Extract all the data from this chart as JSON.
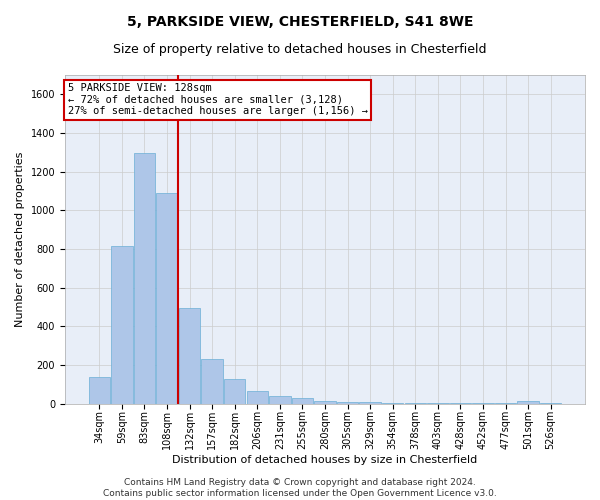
{
  "title1": "5, PARKSIDE VIEW, CHESTERFIELD, S41 8WE",
  "title2": "Size of property relative to detached houses in Chesterfield",
  "xlabel": "Distribution of detached houses by size in Chesterfield",
  "ylabel": "Number of detached properties",
  "footer": "Contains HM Land Registry data © Crown copyright and database right 2024.\nContains public sector information licensed under the Open Government Licence v3.0.",
  "categories": [
    "34sqm",
    "59sqm",
    "83sqm",
    "108sqm",
    "132sqm",
    "157sqm",
    "182sqm",
    "206sqm",
    "231sqm",
    "255sqm",
    "280sqm",
    "305sqm",
    "329sqm",
    "354sqm",
    "378sqm",
    "403sqm",
    "428sqm",
    "452sqm",
    "477sqm",
    "501sqm",
    "526sqm"
  ],
  "values": [
    140,
    815,
    1295,
    1090,
    495,
    230,
    130,
    65,
    38,
    27,
    15,
    10,
    8,
    5,
    5,
    3,
    3,
    2,
    2,
    12,
    5
  ],
  "bar_color": "#aec6e8",
  "bar_edge_color": "#6aaed6",
  "ref_line_x": 3.5,
  "ref_line_label": "5 PARKSIDE VIEW: 128sqm",
  "annotation_line1": "← 72% of detached houses are smaller (3,128)",
  "annotation_line2": "27% of semi-detached houses are larger (1,156) →",
  "annotation_box_color": "#ffffff",
  "annotation_box_edge": "#cc0000",
  "ref_line_color": "#cc0000",
  "ylim": [
    0,
    1700
  ],
  "yticks": [
    0,
    200,
    400,
    600,
    800,
    1000,
    1200,
    1400,
    1600
  ],
  "grid_color": "#cccccc",
  "bg_color": "#e8eef8",
  "fig_bg_color": "#ffffff",
  "title1_fontsize": 10,
  "title2_fontsize": 9,
  "axis_label_fontsize": 8,
  "tick_fontsize": 7,
  "footer_fontsize": 6.5,
  "annot_fontsize": 7.5
}
